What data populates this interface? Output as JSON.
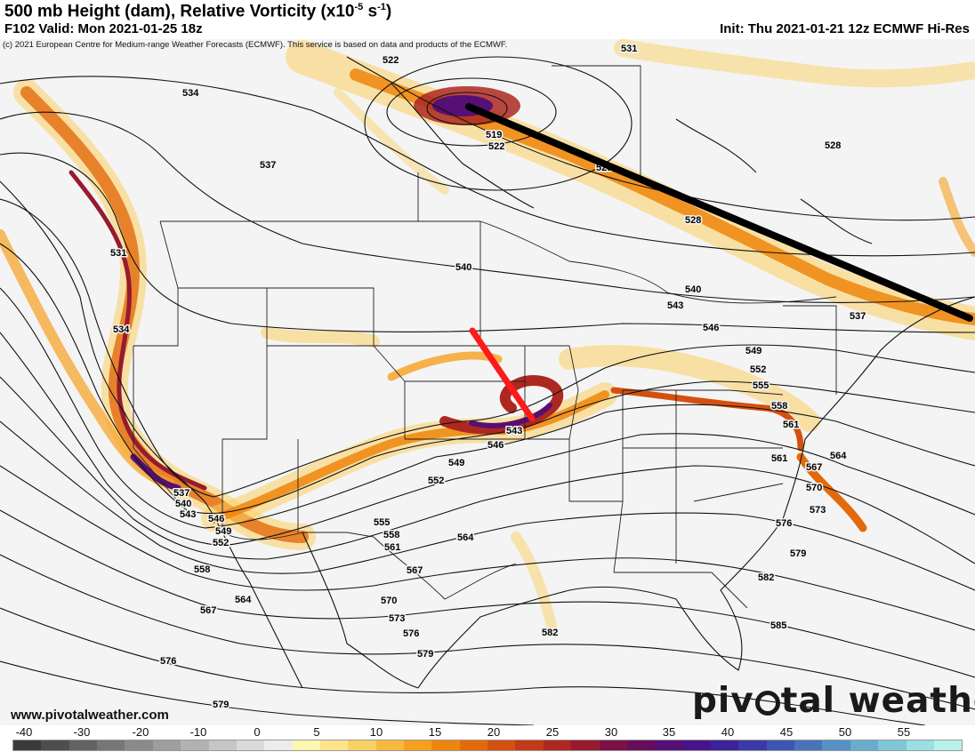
{
  "header": {
    "title": "500 mb Height (dam), Relative Vorticity (x10",
    "title_exp1": "-5",
    "title_mid": " s",
    "title_exp2": "-1",
    "title_end": ")",
    "valid": "F102 Valid: Mon 2021-01-25 18z",
    "init": "Init: Thu 2021-01-21 12z ECMWF Hi-Res"
  },
  "copyright": "(c) 2021 European Centre for Medium-range Weather Forecasts (ECMWF). This service is based on data and products of the ECMWF.",
  "website": "www.pivotalweather.com",
  "brand": {
    "left": "piv",
    "right": "tal weather"
  },
  "colorbar": {
    "ticks": [
      "-40",
      "-30",
      "-20",
      "-10",
      "0",
      "5",
      "10",
      "15",
      "20",
      "25",
      "30",
      "35",
      "40",
      "45",
      "50",
      "55"
    ],
    "colors": [
      "#3a3a3a",
      "#4e4e4e",
      "#626262",
      "#767676",
      "#8a8a8a",
      "#9e9e9e",
      "#b2b2b2",
      "#c6c6c6",
      "#dadada",
      "#ececec",
      "#fff7b0",
      "#fde48a",
      "#fbd063",
      "#f9b93f",
      "#f6a01f",
      "#ef850c",
      "#e36a0b",
      "#d4500f",
      "#c23a18",
      "#ad2821",
      "#961b2f",
      "#7d1145",
      "#670d5c",
      "#560f74",
      "#47148a",
      "#3d229a",
      "#3a3aa8",
      "#3e56b3",
      "#4873bb",
      "#5690c4",
      "#68acce",
      "#7ec7d8",
      "#99dfe3",
      "#b8f1ec"
    ]
  },
  "contours": [
    {
      "label": "519"
    },
    {
      "label": "522"
    },
    {
      "label": "522"
    },
    {
      "label": "525"
    },
    {
      "label": "528"
    },
    {
      "label": "528"
    },
    {
      "label": "531"
    },
    {
      "label": "531"
    },
    {
      "label": "534"
    },
    {
      "label": "534"
    },
    {
      "label": "537"
    },
    {
      "label": "537"
    },
    {
      "label": "537"
    },
    {
      "label": "540"
    },
    {
      "label": "540"
    },
    {
      "label": "540"
    },
    {
      "label": "543"
    },
    {
      "label": "543"
    },
    {
      "label": "543"
    },
    {
      "label": "546"
    },
    {
      "label": "546"
    },
    {
      "label": "546"
    },
    {
      "label": "549"
    },
    {
      "label": "549"
    },
    {
      "label": "549"
    },
    {
      "label": "552"
    },
    {
      "label": "552"
    },
    {
      "label": "552"
    },
    {
      "label": "555"
    },
    {
      "label": "555"
    },
    {
      "label": "558"
    },
    {
      "label": "558"
    },
    {
      "label": "558"
    },
    {
      "label": "561"
    },
    {
      "label": "561"
    },
    {
      "label": "561"
    },
    {
      "label": "564"
    },
    {
      "label": "564"
    },
    {
      "label": "564"
    },
    {
      "label": "567"
    },
    {
      "label": "567"
    },
    {
      "label": "567"
    },
    {
      "label": "570"
    },
    {
      "label": "570"
    },
    {
      "label": "573"
    },
    {
      "label": "573"
    },
    {
      "label": "576"
    },
    {
      "label": "576"
    },
    {
      "label": "576"
    },
    {
      "label": "579"
    },
    {
      "label": "579"
    },
    {
      "label": "579"
    },
    {
      "label": "582"
    },
    {
      "label": "582"
    },
    {
      "label": "585"
    }
  ]
}
